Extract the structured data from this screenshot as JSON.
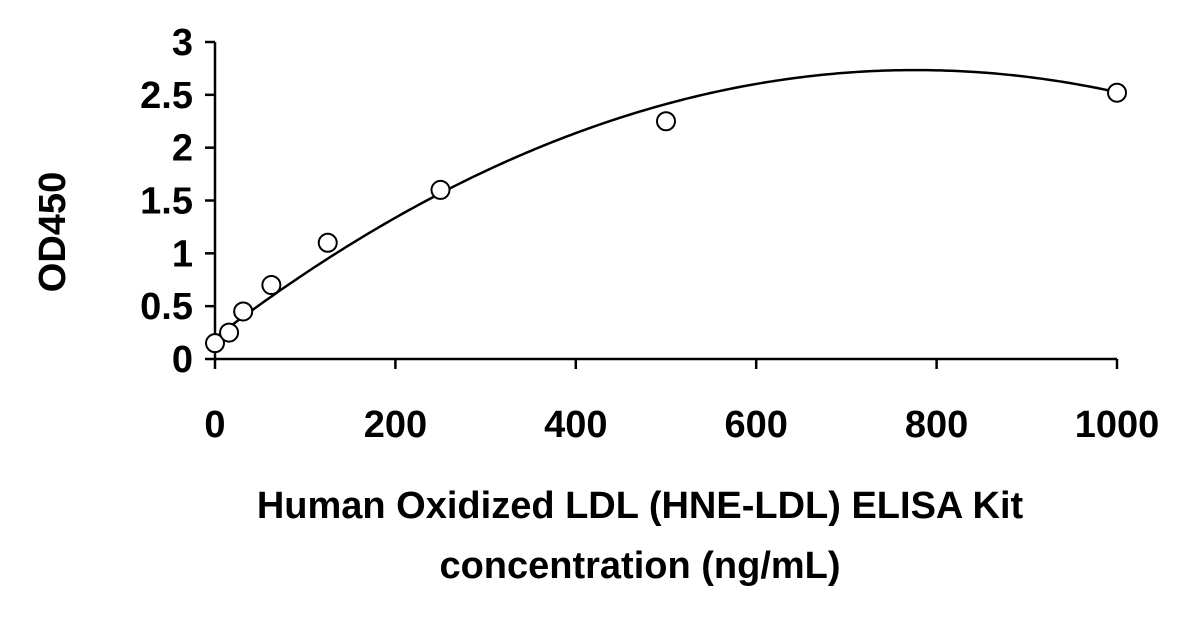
{
  "chart_data": {
    "type": "scatter",
    "title": "",
    "xlabel_lines": [
      "Human Oxidized LDL (HNE-LDL) ELISA Kit",
      "concentration (ng/mL)"
    ],
    "ylabel": "OD450",
    "xlim": [
      0,
      1000
    ],
    "ylim": [
      0,
      3
    ],
    "xticks": [
      0,
      200,
      400,
      600,
      800,
      1000
    ],
    "yticks": [
      0,
      0.5,
      1,
      1.5,
      2,
      2.5,
      3
    ],
    "xtick_labels": [
      "0",
      "200",
      "400",
      "600",
      "800",
      "1000"
    ],
    "ytick_labels": [
      "0",
      "0.5",
      "1",
      "1.5",
      "2",
      "2.5",
      "3"
    ],
    "grid": false,
    "legend": "none",
    "series": [
      {
        "x": [
          0,
          15.6,
          31.25,
          62.5,
          125,
          250,
          500,
          1000
        ],
        "y": [
          0.15,
          0.25,
          0.45,
          0.7,
          1.1,
          1.6,
          2.25,
          2.52
        ]
      }
    ],
    "trendline": {
      "type": "polynomial",
      "coefficients": [
        0.2,
        0.006525,
        -4.2e-06
      ]
    }
  }
}
